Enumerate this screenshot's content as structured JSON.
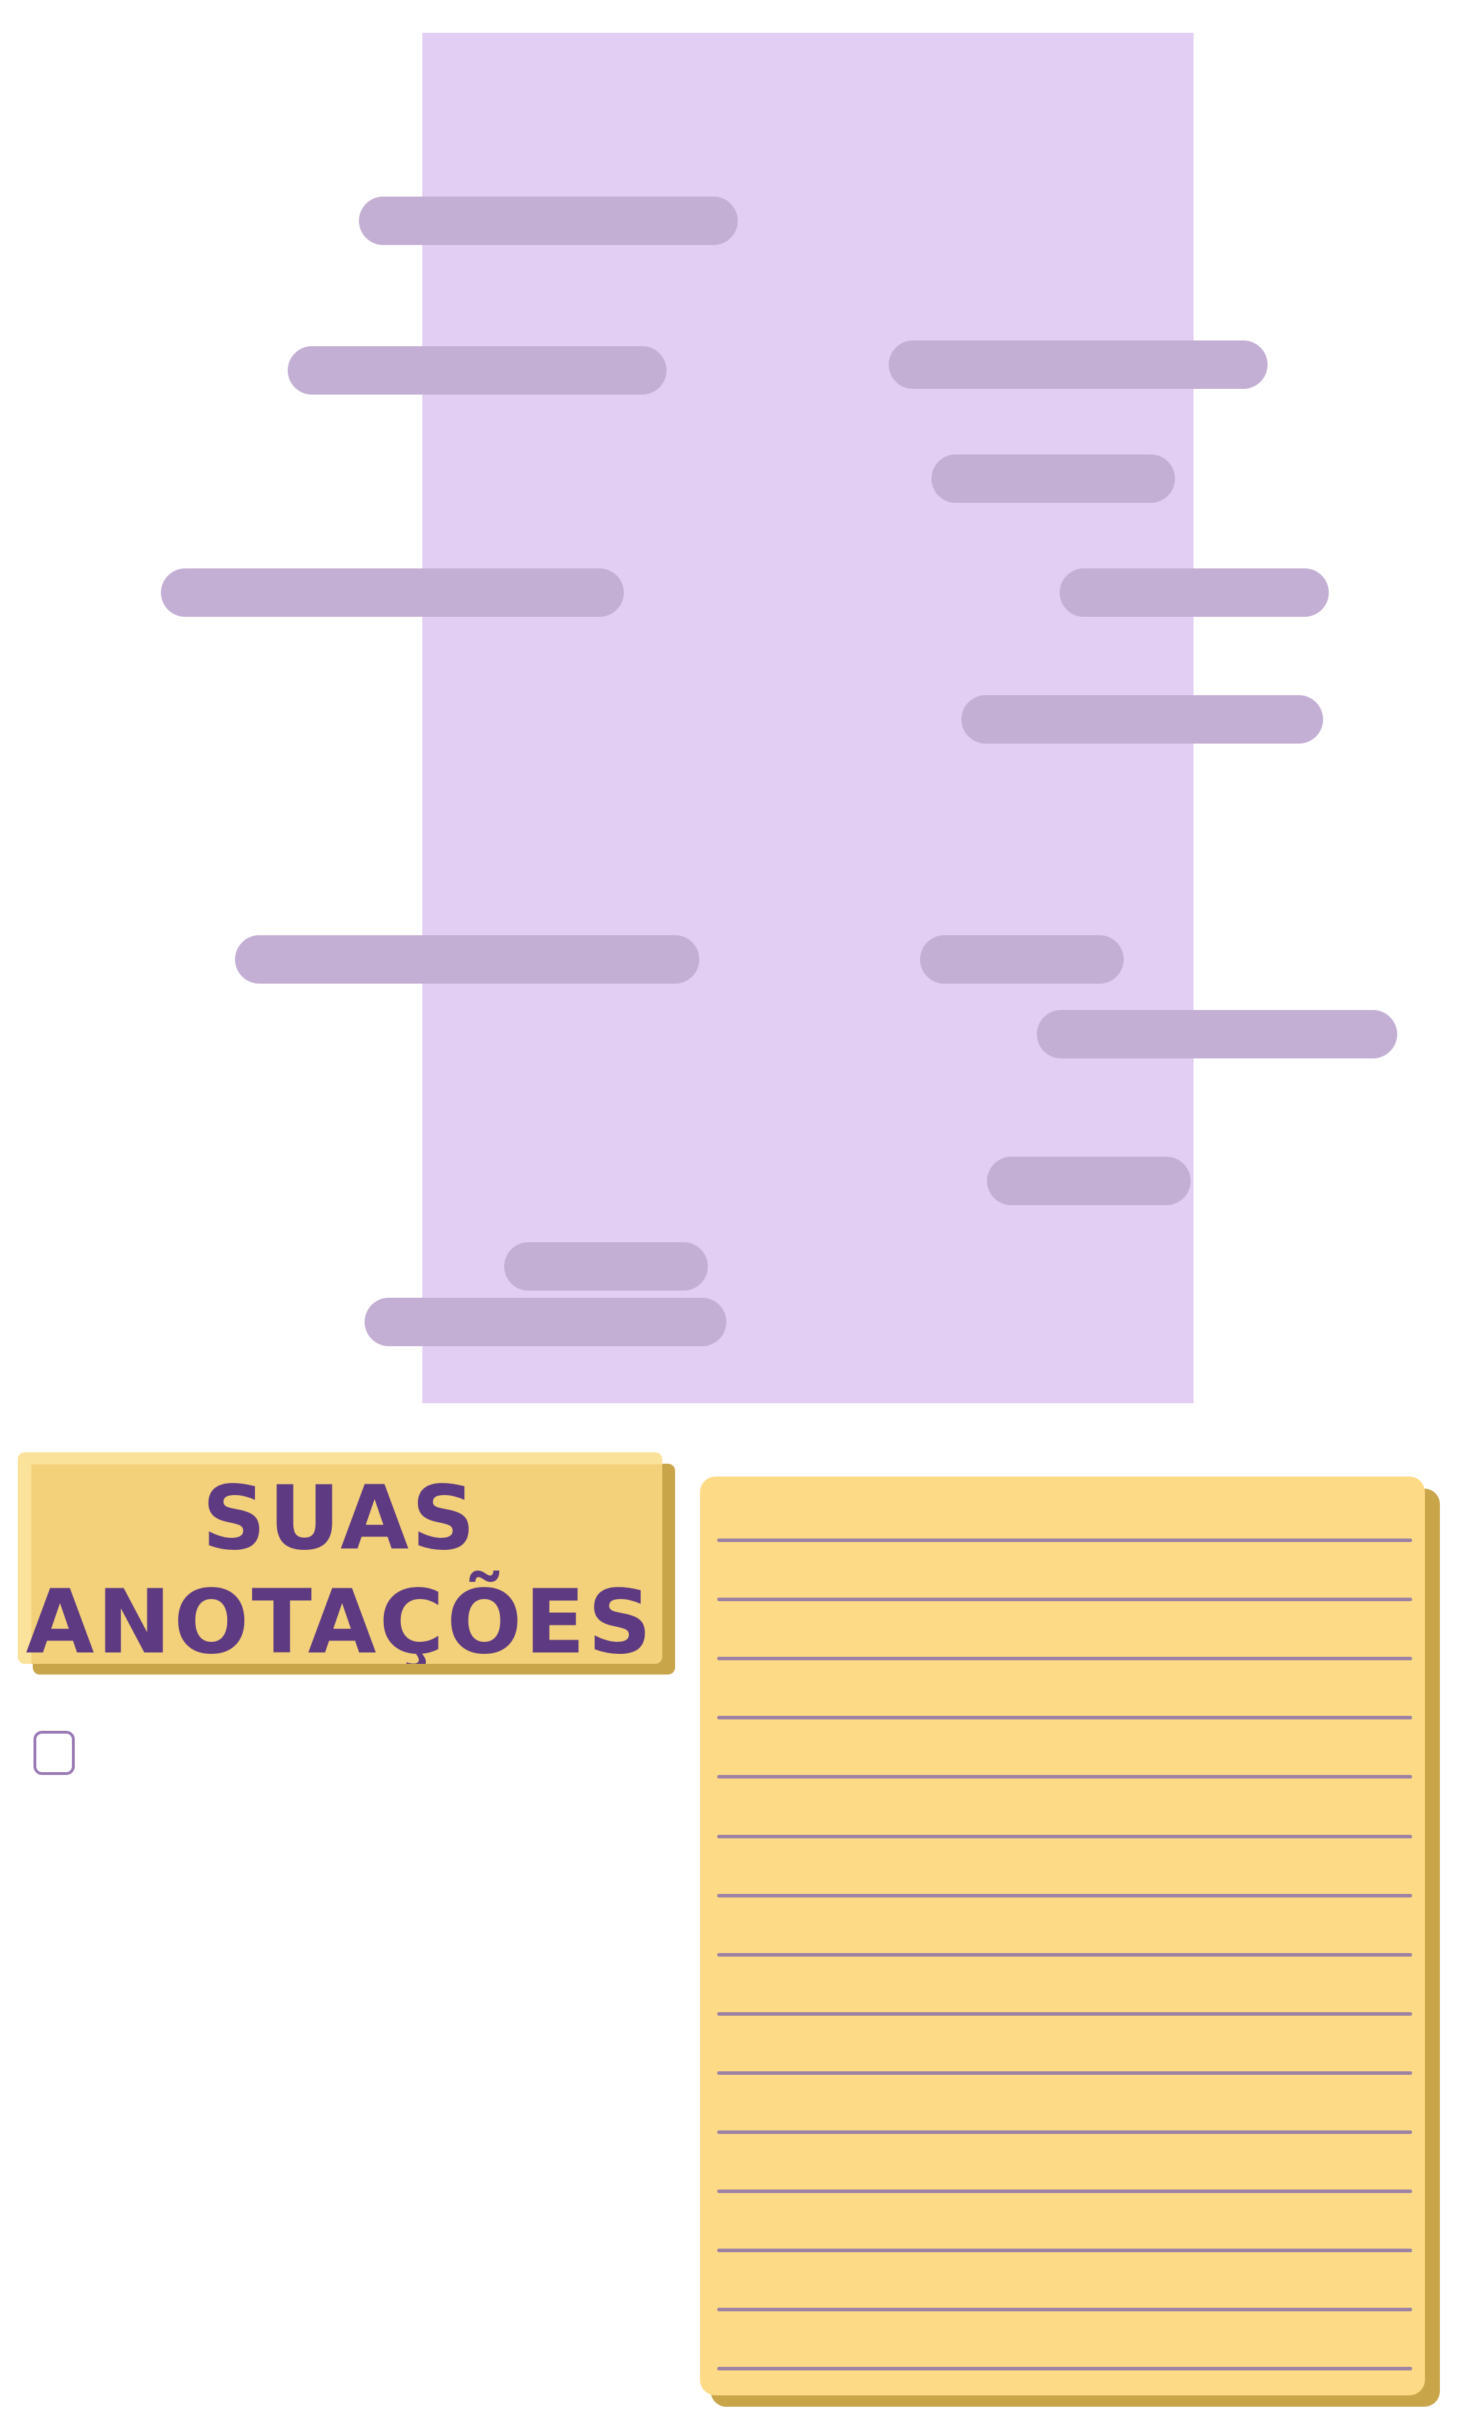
{
  "colors": {
    "panel": "#e2cef2",
    "pill": "#c4afd4",
    "title_card": "#f3d17b",
    "title_highlight": "#fbe29a",
    "shadow": "#c9a54a",
    "title_text": "#5e3a82",
    "notes_paper": "#fddb86",
    "notes_lines": "#9e82a4",
    "checkbox_border": "#9a7ab4"
  },
  "header": {
    "title_line1": "SUAS",
    "title_line2": "ANOTAÇÕES"
  },
  "checkbox": {
    "checked": false,
    "icon": "empty-checkbox-icon"
  },
  "notes": {
    "line_count": 15
  }
}
